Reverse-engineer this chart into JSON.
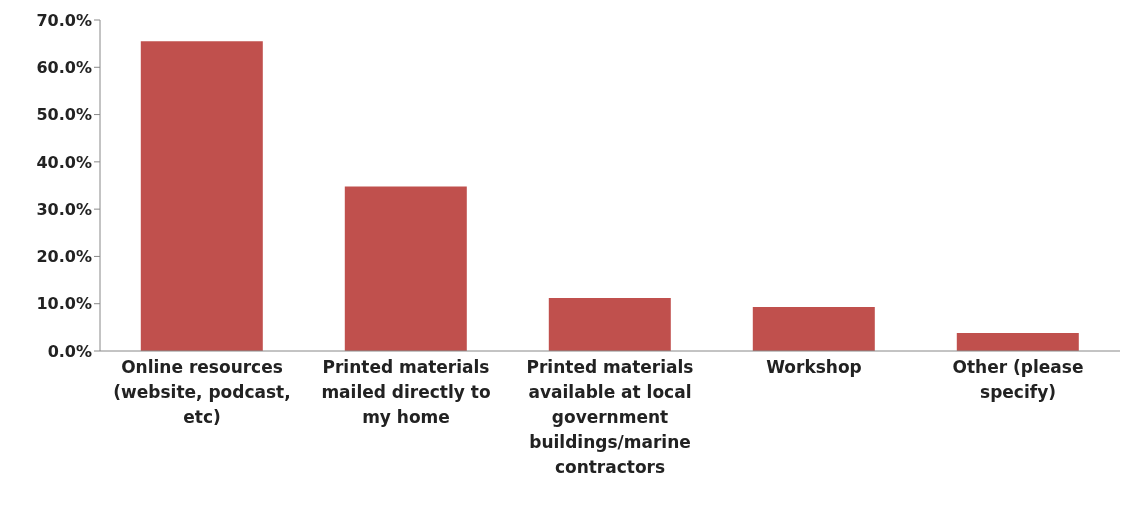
{
  "chart_data": {
    "type": "bar",
    "categories": [
      "Online resources (website, podcast, etc)",
      "Printed materials mailed directly to my home",
      "Printed materials available at local government buildings/marine contractors",
      "Workshop",
      "Other (please specify)"
    ],
    "values": [
      65.5,
      34.8,
      11.2,
      9.3,
      3.8
    ],
    "color": "#c0504d",
    "ylim": [
      0,
      70
    ],
    "yticks": [
      {
        "value": 0,
        "label": "0.0%"
      },
      {
        "value": 10,
        "label": "10.0%"
      },
      {
        "value": 20,
        "label": "20.0%"
      },
      {
        "value": 30,
        "label": "30.0%"
      },
      {
        "value": 40,
        "label": "40.0%"
      },
      {
        "value": 50,
        "label": "50.0%"
      },
      {
        "value": 60,
        "label": "60.0%"
      },
      {
        "value": 70,
        "label": "70.0%"
      }
    ],
    "grid": false,
    "legend": false
  }
}
